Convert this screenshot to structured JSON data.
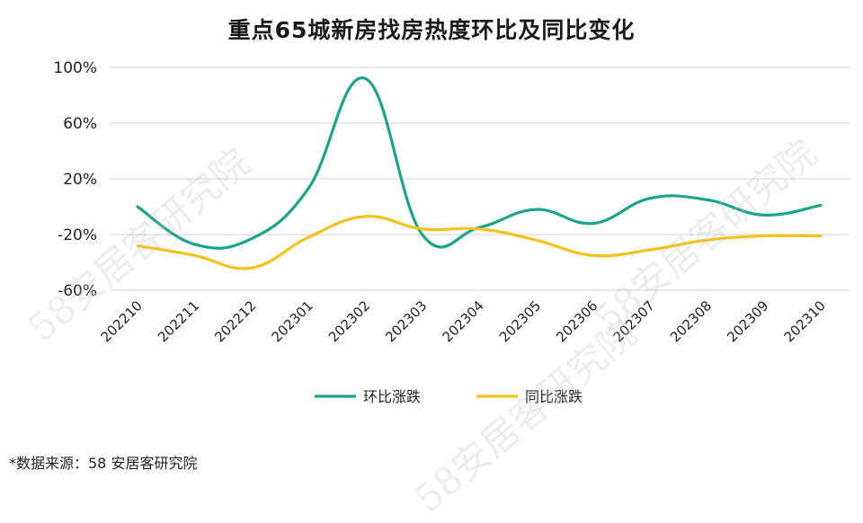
{
  "title": "重点65城新房找房热度环比及同比变化",
  "source": "*数据来源：58 安居客研究院",
  "watermark": "58安居客研究院",
  "chart_data": {
    "type": "line",
    "title": "重点65城新房找房热度环比及同比变化",
    "categories": [
      "202210",
      "202211",
      "202212",
      "202301",
      "202302",
      "202303",
      "202304",
      "202305",
      "202306",
      "202307",
      "202308",
      "202309",
      "202310"
    ],
    "yticks": [
      "100%",
      "60%",
      "20%",
      "-20%",
      "-60%"
    ],
    "ylim": [
      -60,
      100
    ],
    "grid": true,
    "legend_position": "bottom",
    "series": [
      {
        "name": "环比涨跌",
        "color": "#1aa58a",
        "values": [
          0,
          -27,
          -23,
          13,
          92,
          -20,
          -15,
          -2,
          -12,
          6,
          5,
          -6,
          1
        ]
      },
      {
        "name": "同比涨跌",
        "color": "#f5c21b",
        "values": [
          -28,
          -35,
          -44,
          -22,
          -7,
          -16,
          -16,
          -24,
          -35,
          -31,
          -24,
          -21,
          -21
        ]
      }
    ]
  }
}
